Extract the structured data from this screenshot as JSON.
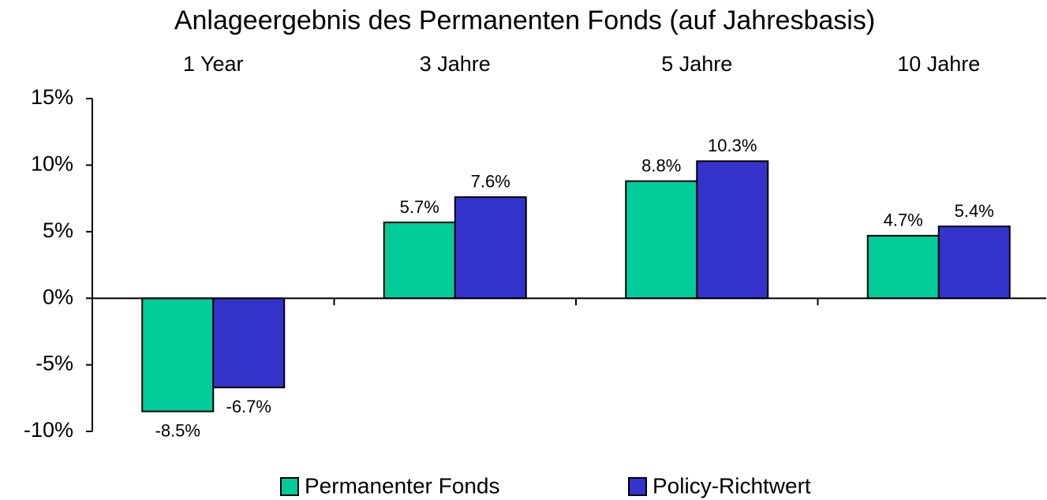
{
  "chart_data": {
    "type": "bar",
    "title": "Anlageergebnis des Permanenten Fonds (auf Jahresbasis)",
    "categories": [
      "1 Year",
      "3 Jahre",
      "5 Jahre",
      "10 Jahre"
    ],
    "series": [
      {
        "name": "Permanenter Fonds",
        "color": "#00cc99",
        "values": [
          -8.5,
          5.7,
          8.8,
          4.7
        ],
        "value_labels": [
          "-8.5%",
          "5.7%",
          "8.8%",
          "4.7%"
        ]
      },
      {
        "name": "Policy-Richtwert",
        "color": "#3333cc",
        "values": [
          -6.7,
          7.6,
          10.3,
          5.4
        ],
        "value_labels": [
          "-6.7%",
          "7.6%",
          "10.3%",
          "5.4%"
        ]
      }
    ],
    "ylim": [
      -10,
      15
    ],
    "yticks": [
      {
        "value": -10,
        "label": "-10%"
      },
      {
        "value": -5,
        "label": "-5%"
      },
      {
        "value": 0,
        "label": "0%"
      },
      {
        "value": 5,
        "label": "5%"
      },
      {
        "value": 10,
        "label": "10%"
      },
      {
        "value": 15,
        "label": "15%"
      }
    ],
    "grid": false
  }
}
